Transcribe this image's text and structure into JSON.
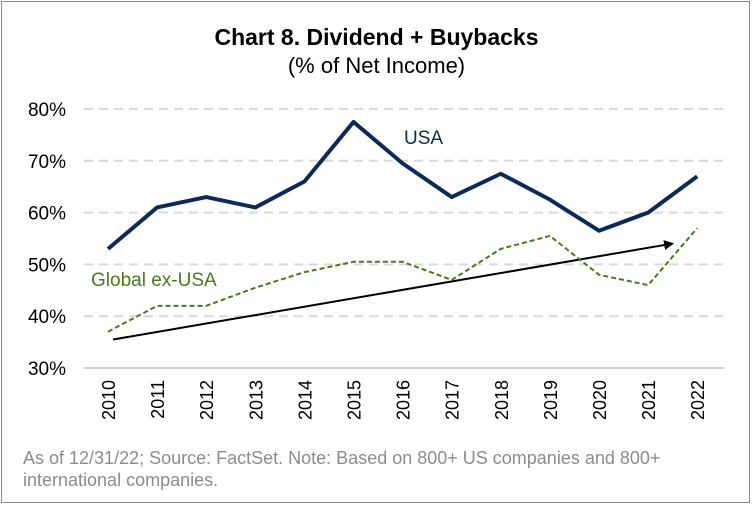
{
  "chart_data": {
    "type": "line",
    "title": "Chart 8. Dividend + Buybacks",
    "subtitle": "(% of Net Income)",
    "categories": [
      "2010",
      "2011",
      "2012",
      "2013",
      "2014",
      "2015",
      "2016",
      "2017",
      "2018",
      "2019",
      "2020",
      "2021",
      "2022"
    ],
    "series": [
      {
        "name": "USA",
        "values": [
          53,
          61,
          63,
          61,
          66,
          77.5,
          69.5,
          63,
          67.5,
          62.5,
          56.5,
          60,
          67
        ],
        "color": "#0b2a5b",
        "style": "solid"
      },
      {
        "name": "Global ex-USA",
        "values": [
          37,
          42,
          42,
          45.5,
          48.5,
          50.5,
          50.5,
          47,
          53,
          55.5,
          48,
          46,
          57
        ],
        "color": "#4a7a1e",
        "style": "dashed"
      }
    ],
    "trend_arrow": {
      "from": [
        "2010",
        35.5
      ],
      "to": [
        "2021",
        54
      ],
      "color": "#000000"
    },
    "y_ticks": [
      "30%",
      "40%",
      "50%",
      "60%",
      "70%",
      "80%"
    ],
    "ylim": [
      30,
      80
    ],
    "grid": true,
    "note": "As of 12/31/22; Source: FactSet. Note: Based on 800+ US companies and 800+ international companies."
  }
}
